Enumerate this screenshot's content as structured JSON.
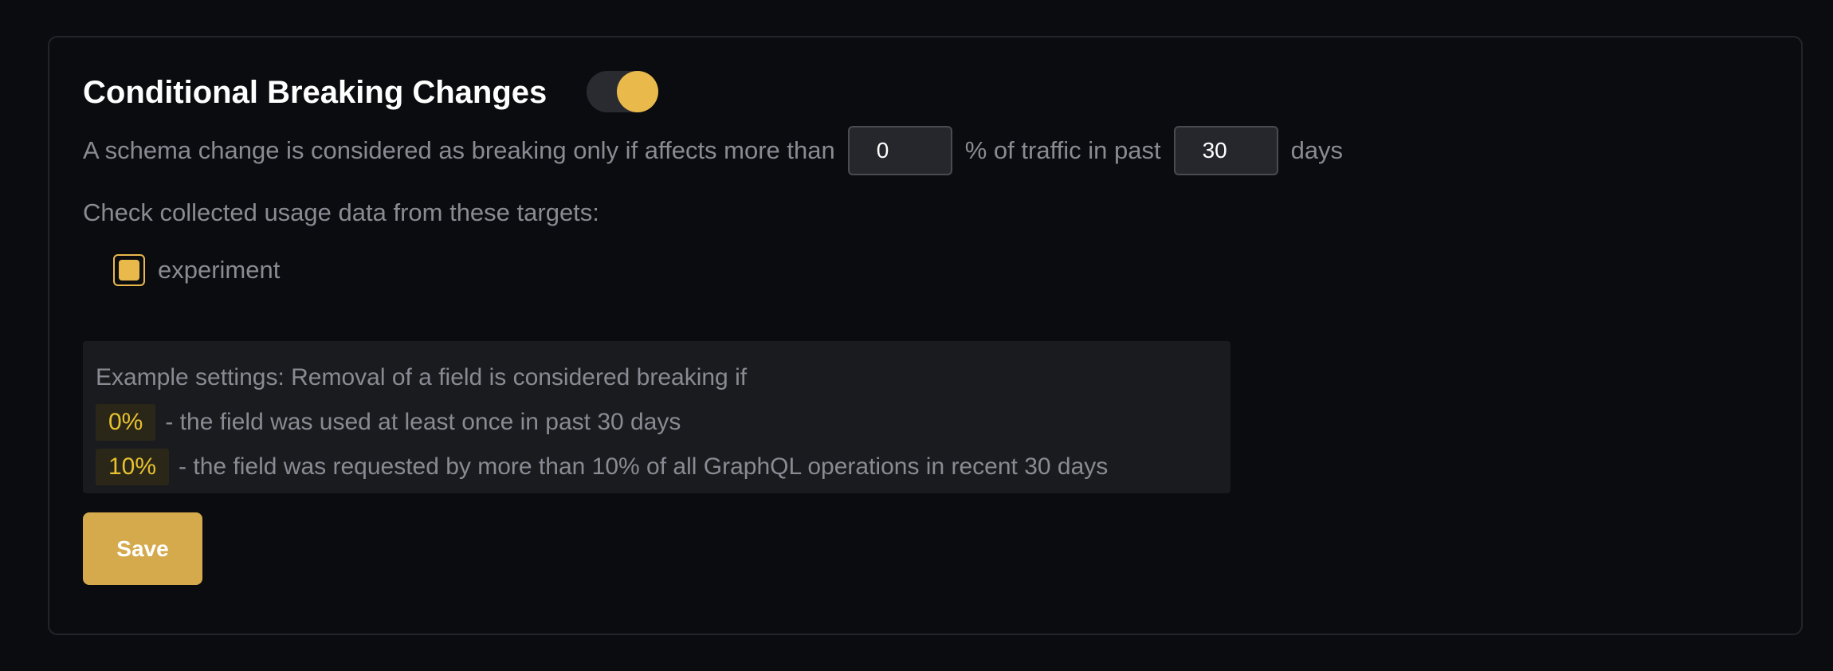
{
  "section": {
    "title": "Conditional Breaking Changes",
    "enabled": true,
    "accent_color": "#eab94c"
  },
  "rule": {
    "text_before": "A schema change is considered as breaking only if affects more than",
    "percentage_value": "0",
    "text_middle": "% of traffic in past",
    "days_value": "30",
    "text_after": "days"
  },
  "targets": {
    "label": "Check collected usage data from these targets:",
    "items": [
      {
        "label": "experiment",
        "checked": true
      }
    ]
  },
  "example": {
    "heading": "Example settings: Removal of a field is considered breaking if",
    "lines": [
      {
        "badge": "0%",
        "text": "- the field was used at least once in past 30 days"
      },
      {
        "badge": "10%",
        "text": "- the field was requested by more than 10% of all GraphQL operations in recent 30 days"
      }
    ]
  },
  "save_label": "Save"
}
